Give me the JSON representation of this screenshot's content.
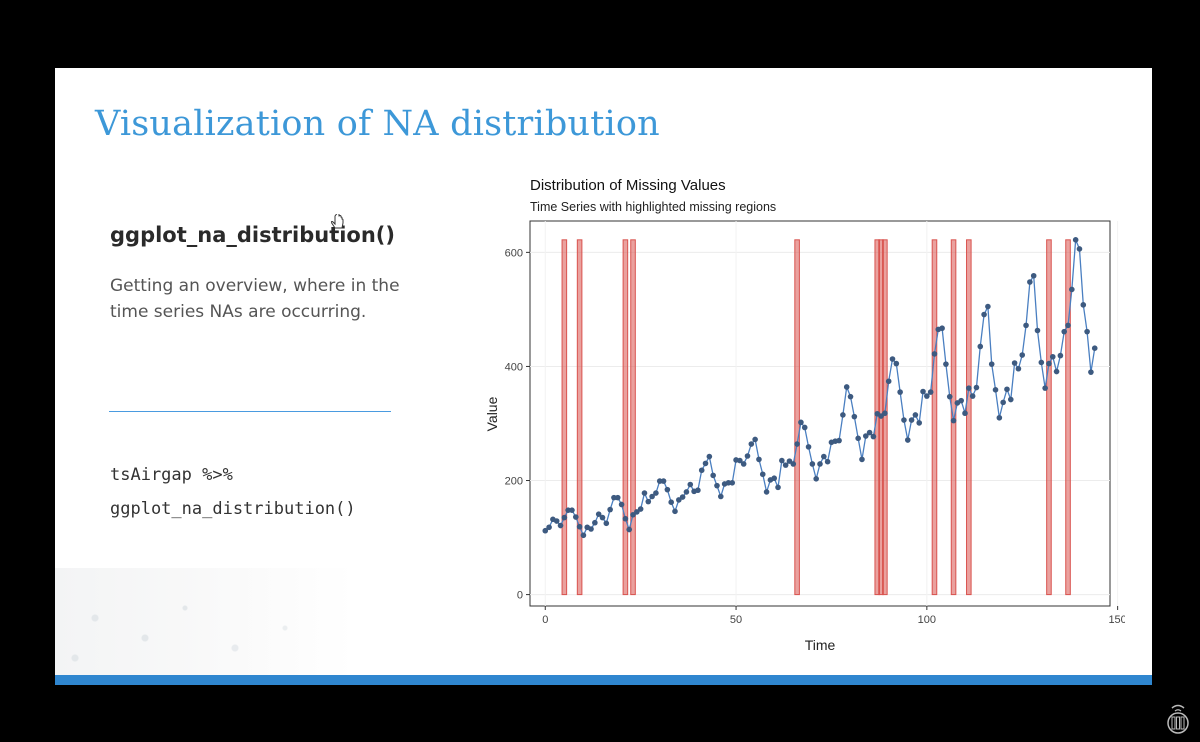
{
  "slide": {
    "title": "Visualization of NA distribution",
    "function_name": "ggplot_na_distribution()",
    "description": "Getting an overview, where in the time series NAs are occurring.",
    "code_lines": [
      "tsAirgap %>%",
      "ggplot_na_distribution()"
    ],
    "colors": {
      "title": "#3d98d8",
      "footer_bar": "#2f86cf",
      "divider": "#4a9be0"
    }
  },
  "chart_data": {
    "type": "line",
    "title": "Distribution of Missing Values",
    "subtitle": "Time Series with highlighted missing regions",
    "xlabel": "Time",
    "ylabel": "Value",
    "xlim": [
      -4,
      148
    ],
    "ylim": [
      -20,
      655
    ],
    "xticks": [
      0,
      50,
      100,
      150
    ],
    "yticks": [
      0,
      200,
      400,
      600
    ],
    "series": [
      {
        "name": "tsAirgap",
        "color": "#4a7fc1",
        "point_color": "#3d5a80",
        "values": [
          112,
          118,
          132,
          129,
          121,
          135,
          148,
          148,
          136,
          119,
          104,
          118,
          115,
          126,
          141,
          135,
          125,
          149,
          170,
          170,
          158,
          133,
          114,
          140,
          145,
          150,
          178,
          163,
          172,
          178,
          199,
          199,
          184,
          162,
          146,
          166,
          171,
          180,
          193,
          181,
          183,
          218,
          230,
          242,
          209,
          191,
          172,
          194,
          196,
          196,
          236,
          235,
          229,
          243,
          264,
          272,
          237,
          211,
          180,
          201,
          204,
          188,
          235,
          227,
          234,
          229,
          264,
          302,
          293,
          259,
          229,
          203,
          229,
          242,
          233,
          267,
          269,
          270,
          315,
          364,
          347,
          312,
          274,
          237,
          278,
          284,
          277,
          317,
          313,
          318,
          374,
          413,
          405,
          355,
          306,
          271,
          306,
          315,
          301,
          356,
          348,
          355,
          422,
          465,
          467,
          404,
          347,
          305,
          336,
          340,
          318,
          362,
          348,
          363,
          435,
          491,
          505,
          404,
          359,
          310,
          337,
          360,
          342,
          406,
          396,
          420,
          472,
          548,
          559,
          463,
          407,
          362,
          405,
          417,
          391,
          419,
          461,
          472,
          535,
          622,
          606,
          508,
          461,
          390,
          432
        ]
      }
    ],
    "missing_indices": [
      5,
      9,
      21,
      23,
      66,
      87,
      88,
      89,
      102,
      107,
      111,
      132,
      137
    ],
    "missing_color": "#d9534f"
  }
}
